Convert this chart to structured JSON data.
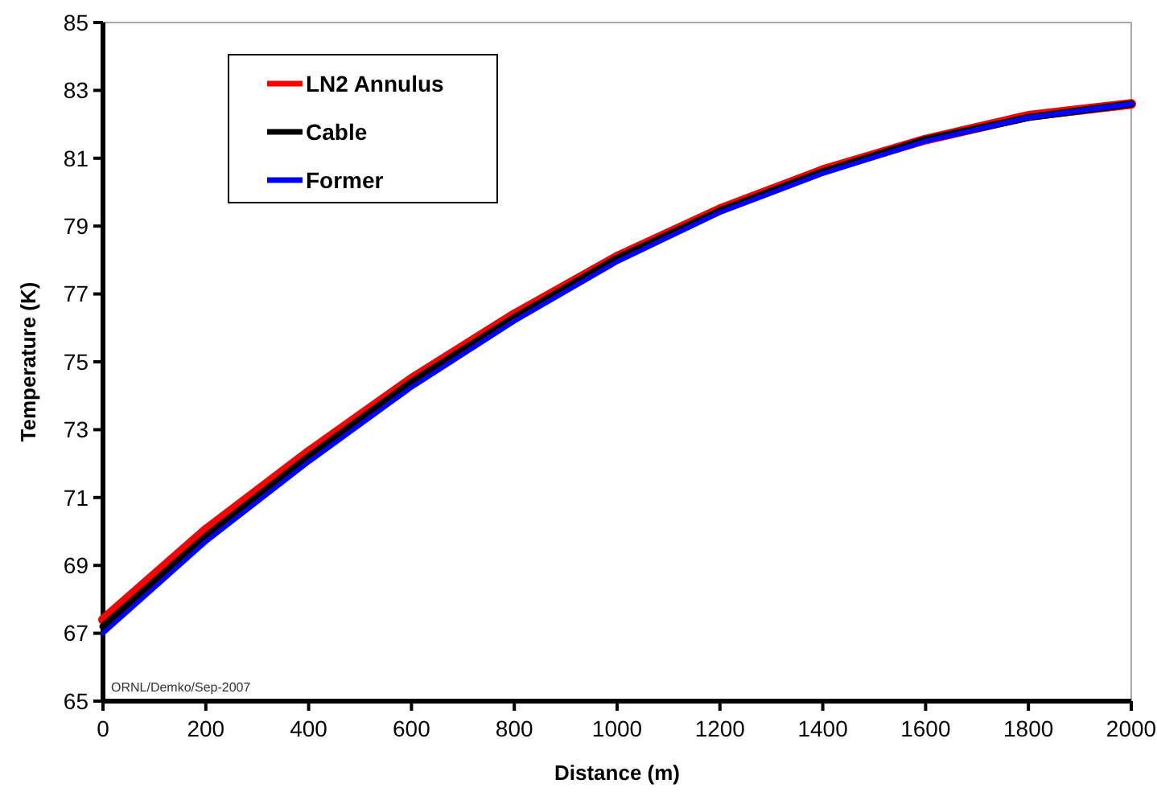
{
  "chart_data": {
    "type": "line",
    "xlabel": "Distance (m)",
    "ylabel": "Temperature (K)",
    "x": [
      0,
      200,
      400,
      600,
      800,
      1000,
      1200,
      1400,
      1600,
      1800,
      2000
    ],
    "series": [
      {
        "name": "LN2 Annulus",
        "color": "#ff0000",
        "values": [
          67.4,
          70.05,
          72.35,
          74.5,
          76.4,
          78.1,
          79.5,
          80.65,
          81.55,
          82.25,
          82.6
        ]
      },
      {
        "name": "Cable",
        "color": "#000000",
        "values": [
          67.2,
          69.85,
          72.2,
          74.4,
          76.3,
          78.05,
          79.45,
          80.6,
          81.55,
          82.2,
          82.6
        ]
      },
      {
        "name": "Former",
        "color": "#0000ff",
        "values": [
          67.0,
          69.7,
          72.05,
          74.25,
          76.2,
          77.95,
          79.4,
          80.55,
          81.5,
          82.2,
          82.6
        ]
      }
    ],
    "xlim": [
      0,
      2000
    ],
    "xticks": [
      0,
      200,
      400,
      600,
      800,
      1000,
      1200,
      1400,
      1600,
      1800,
      2000
    ],
    "ylim": [
      65,
      85
    ],
    "yticks": [
      65,
      67,
      69,
      71,
      73,
      75,
      77,
      79,
      81,
      83,
      85
    ],
    "grid": false,
    "legend": "top left",
    "marker": "none",
    "line_style": "solid",
    "annotations": [
      "ORNL/Demko/Sep-2007"
    ]
  }
}
